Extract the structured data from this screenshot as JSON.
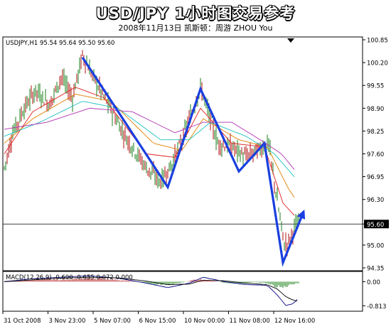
{
  "header": {
    "title": "USD/JPY 1小时图交易参考",
    "subtitle": "2008年11月13日   凯斯顿：周游 ZHOU You"
  },
  "colors": {
    "bull": "#1a7f1a",
    "bear": "#b01010",
    "zigzag": "#1a3fe0",
    "ma_fast": "#e02020",
    "ma_mid": "#e08000",
    "ma_slow": "#20c0c0",
    "ma_long": "#b030b0",
    "macd_line": "#000080",
    "signal_line": "#000000"
  },
  "chart_data": [
    {
      "type": "candlestick",
      "label": "USDJPY,H1  95.54 95.64 95.50 95.60",
      "ylim": [
        94.35,
        100.85
      ],
      "yticks": [
        "100.85",
        "100.20",
        "99.55",
        "98.90",
        "98.25",
        "97.60",
        "96.95",
        "96.30",
        "95.60",
        "95.00",
        "94.35"
      ],
      "current_price": "95.60",
      "xticks": [
        "31 Oct 2008",
        "3 Nov 23:00",
        "5 Nov 07:00",
        "6 Nov 15:00",
        "10 Nov 00:00",
        "11 Nov 08:00",
        "12 Nov 16:00"
      ],
      "price_path": [
        [
          0,
          97.2
        ],
        [
          6,
          98.2
        ],
        [
          14,
          98.9
        ],
        [
          22,
          99.4
        ],
        [
          32,
          99.0
        ],
        [
          40,
          99.8
        ],
        [
          48,
          99.2
        ],
        [
          55,
          100.4
        ],
        [
          65,
          99.6
        ],
        [
          72,
          99.1
        ],
        [
          85,
          98.1
        ],
        [
          100,
          97.2
        ],
        [
          110,
          96.8
        ],
        [
          118,
          97.3
        ],
        [
          125,
          98.0
        ],
        [
          134,
          99.0
        ],
        [
          138,
          99.5
        ],
        [
          145,
          98.6
        ],
        [
          150,
          97.9
        ],
        [
          160,
          97.8
        ],
        [
          170,
          97.5
        ],
        [
          178,
          97.7
        ],
        [
          186,
          97.9
        ],
        [
          188,
          97.3
        ],
        [
          193,
          96.0
        ],
        [
          197,
          95.0
        ],
        [
          200,
          95.1
        ],
        [
          204,
          95.5
        ],
        [
          206,
          95.6
        ]
      ],
      "zigzag": [
        [
          55,
          100.35
        ],
        [
          115,
          96.65
        ],
        [
          138,
          99.45
        ],
        [
          165,
          97.1
        ],
        [
          183,
          97.9
        ],
        [
          196,
          94.5
        ],
        [
          210,
          95.9
        ]
      ],
      "moving_averages": [
        {
          "color": "ma_fast",
          "values": [
            [
              0,
              97.6
            ],
            [
              20,
              98.8
            ],
            [
              50,
              99.5
            ],
            [
              70,
              99.2
            ],
            [
              100,
              97.6
            ],
            [
              120,
              97.5
            ],
            [
              138,
              98.9
            ],
            [
              160,
              97.9
            ],
            [
              183,
              97.8
            ],
            [
              196,
              96.2
            ],
            [
              205,
              95.8
            ]
          ]
        },
        {
          "color": "ma_mid",
          "values": [
            [
              0,
              97.9
            ],
            [
              20,
              98.6
            ],
            [
              50,
              99.3
            ],
            [
              75,
              99.1
            ],
            [
              105,
              97.9
            ],
            [
              125,
              97.7
            ],
            [
              140,
              98.6
            ],
            [
              165,
              98.0
            ],
            [
              185,
              97.8
            ],
            [
              200,
              96.6
            ],
            [
              205,
              96.3
            ]
          ]
        },
        {
          "color": "ma_slow",
          "values": [
            [
              0,
              98.1
            ],
            [
              25,
              98.5
            ],
            [
              55,
              99.1
            ],
            [
              80,
              98.9
            ],
            [
              110,
              98.0
            ],
            [
              130,
              98.0
            ],
            [
              145,
              98.5
            ],
            [
              170,
              98.1
            ],
            [
              190,
              97.6
            ],
            [
              205,
              96.9
            ]
          ]
        },
        {
          "color": "ma_long",
          "values": [
            [
              0,
              98.3
            ],
            [
              30,
              98.5
            ],
            [
              60,
              98.9
            ],
            [
              90,
              98.8
            ],
            [
              120,
              98.2
            ],
            [
              140,
              98.5
            ],
            [
              160,
              98.5
            ],
            [
              180,
              98.0
            ],
            [
              195,
              97.6
            ],
            [
              205,
              97.1
            ]
          ]
        }
      ]
    },
    {
      "type": "macd",
      "label": "MACD(12,26,9) -0.600 -0.655 0.072 0.000",
      "ylim": [
        -0.95,
        0.25
      ],
      "yticks": [
        "0.00",
        "-0.813"
      ],
      "histogram_profile": [
        [
          0,
          0.02
        ],
        [
          15,
          0.05
        ],
        [
          30,
          0.08
        ],
        [
          45,
          0.06
        ],
        [
          60,
          0.12
        ],
        [
          75,
          0.08
        ],
        [
          90,
          0.02
        ],
        [
          105,
          -0.08
        ],
        [
          115,
          -0.1
        ],
        [
          125,
          -0.03
        ],
        [
          135,
          0.08
        ],
        [
          145,
          0.05
        ],
        [
          155,
          -0.04
        ],
        [
          165,
          -0.06
        ],
        [
          175,
          -0.02
        ],
        [
          185,
          -0.05
        ],
        [
          190,
          -0.15
        ],
        [
          196,
          -0.2
        ],
        [
          200,
          -0.12
        ],
        [
          205,
          -0.05
        ]
      ],
      "macd": [
        [
          0,
          0.0
        ],
        [
          20,
          0.1
        ],
        [
          40,
          0.15
        ],
        [
          60,
          0.2
        ],
        [
          80,
          0.12
        ],
        [
          100,
          -0.05
        ],
        [
          115,
          -0.2
        ],
        [
          130,
          -0.05
        ],
        [
          140,
          0.15
        ],
        [
          155,
          0.0
        ],
        [
          170,
          -0.1
        ],
        [
          185,
          -0.12
        ],
        [
          192,
          -0.45
        ],
        [
          198,
          -0.8
        ],
        [
          203,
          -0.75
        ],
        [
          206,
          -0.6
        ]
      ],
      "signal": [
        [
          0,
          0.0
        ],
        [
          20,
          0.06
        ],
        [
          40,
          0.12
        ],
        [
          60,
          0.15
        ],
        [
          80,
          0.13
        ],
        [
          100,
          0.02
        ],
        [
          115,
          -0.1
        ],
        [
          130,
          -0.08
        ],
        [
          140,
          0.05
        ],
        [
          155,
          0.03
        ],
        [
          170,
          -0.05
        ],
        [
          185,
          -0.1
        ],
        [
          192,
          -0.25
        ],
        [
          198,
          -0.5
        ],
        [
          203,
          -0.62
        ],
        [
          206,
          -0.655
        ]
      ]
    }
  ]
}
